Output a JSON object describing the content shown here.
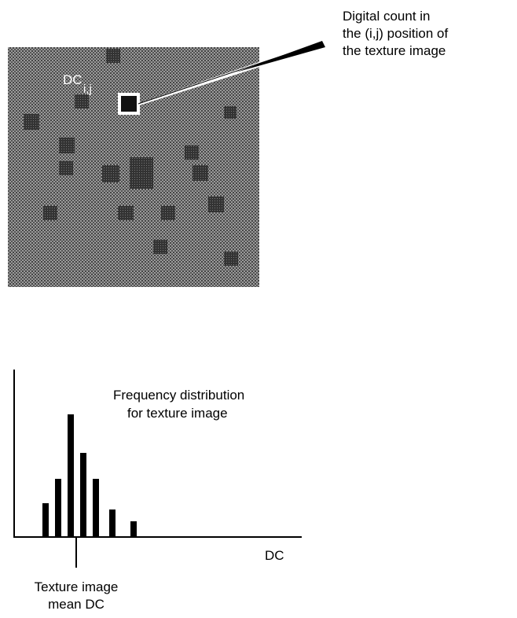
{
  "callout": {
    "lines": [
      "Digital count in",
      "the (i,j) position of",
      "the texture image"
    ]
  },
  "image": {
    "label": "DC",
    "subscript": "i,j"
  },
  "histogram": {
    "title_lines": [
      "Frequency distribution",
      "for texture image"
    ],
    "axis_label": "DC",
    "mean_lines": [
      "Texture image",
      "mean DC"
    ]
  }
}
